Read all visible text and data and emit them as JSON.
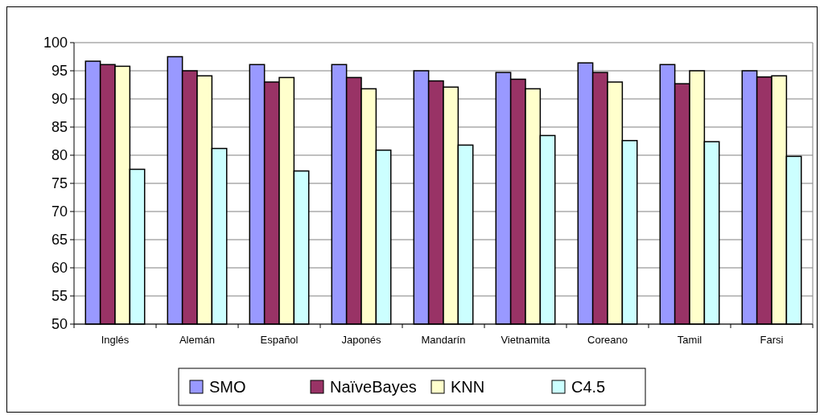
{
  "chart_data": {
    "type": "bar",
    "categories": [
      "Inglés",
      "Alemán",
      "Español",
      "Japonés",
      "Mandarín",
      "Vietnamita",
      "Coreano",
      "Tamil",
      "Farsi"
    ],
    "series": [
      {
        "name": "SMO",
        "color": "#9999ff",
        "values": [
          96.7,
          97.5,
          96.1,
          96.1,
          95.0,
          94.7,
          96.4,
          96.1,
          95.0
        ]
      },
      {
        "name": "NaïveBayes",
        "color": "#993366",
        "values": [
          96.1,
          95.0,
          93.0,
          93.8,
          93.2,
          93.5,
          94.7,
          92.7,
          93.9
        ]
      },
      {
        "name": "KNN",
        "color": "#ffffcc",
        "values": [
          95.8,
          94.1,
          93.8,
          91.8,
          92.1,
          91.8,
          93.0,
          95.0,
          94.1
        ]
      },
      {
        "name": "C4.5",
        "color": "#ccffff",
        "values": [
          77.5,
          81.2,
          77.2,
          80.9,
          81.8,
          83.5,
          82.6,
          82.4,
          79.8
        ]
      }
    ],
    "ylim": [
      50,
      100
    ],
    "yticks": [
      50,
      55,
      60,
      65,
      70,
      75,
      80,
      85,
      90,
      95,
      100
    ],
    "grid": "y",
    "legend": "bottom"
  }
}
